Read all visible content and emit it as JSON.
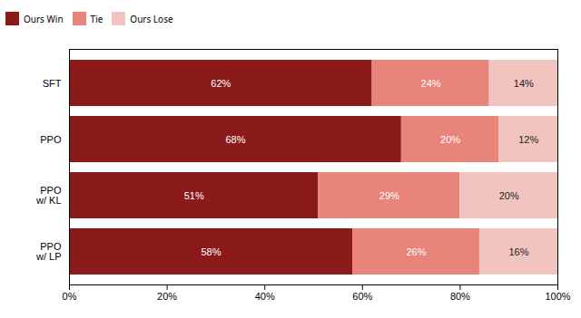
{
  "chart_data": {
    "type": "bar",
    "orientation": "horizontal",
    "stacked": true,
    "categories": [
      "SFT",
      "PPO",
      "PPO\nw/ KL",
      "PPO\nw/ LP"
    ],
    "series": [
      {
        "name": "Ours Win",
        "color": "#8B1A1A",
        "values": [
          62,
          68,
          51,
          58
        ],
        "value_labels": [
          "62%",
          "68%",
          "51%",
          "58%"
        ]
      },
      {
        "name": "Tie",
        "color": "#E8847A",
        "values": [
          24,
          20,
          29,
          26
        ],
        "value_labels": [
          "24%",
          "20%",
          "29%",
          "26%"
        ]
      },
      {
        "name": "Ours Lose",
        "color": "#F2C4C0",
        "values": [
          14,
          12,
          20,
          16
        ],
        "value_labels": [
          "14%",
          "12%",
          "20%",
          "16%"
        ]
      }
    ],
    "xlim": [
      0,
      100
    ],
    "xticks": [
      {
        "value": 0,
        "label": "0%"
      },
      {
        "value": 20,
        "label": "20%"
      },
      {
        "value": 40,
        "label": "40%"
      },
      {
        "value": 60,
        "label": "60%"
      },
      {
        "value": 80,
        "label": "80%"
      },
      {
        "value": 100,
        "label": "100%"
      }
    ],
    "grid": false,
    "legend": "top",
    "data_labels": true
  }
}
